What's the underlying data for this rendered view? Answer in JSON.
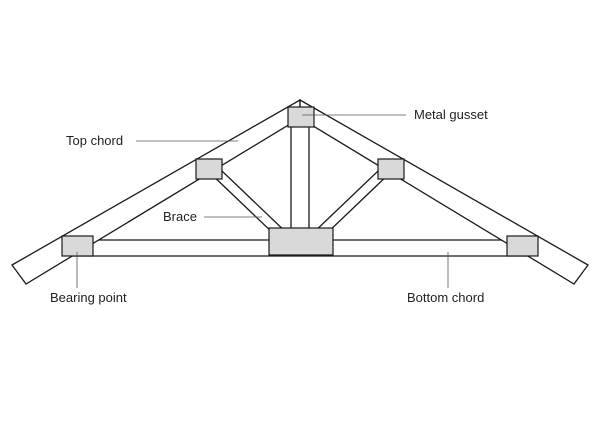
{
  "labels": {
    "metal_gusset": "Metal gusset",
    "top_chord": "Top chord",
    "brace": "Brace",
    "bearing_point": "Bearing point",
    "bottom_chord": "Bottom chord"
  },
  "colors": {
    "line": "#1a1a1a",
    "gusset_fill": "#d9d9d9",
    "member_fill": "#ffffff",
    "leader": "#555555",
    "text": "#222222"
  }
}
